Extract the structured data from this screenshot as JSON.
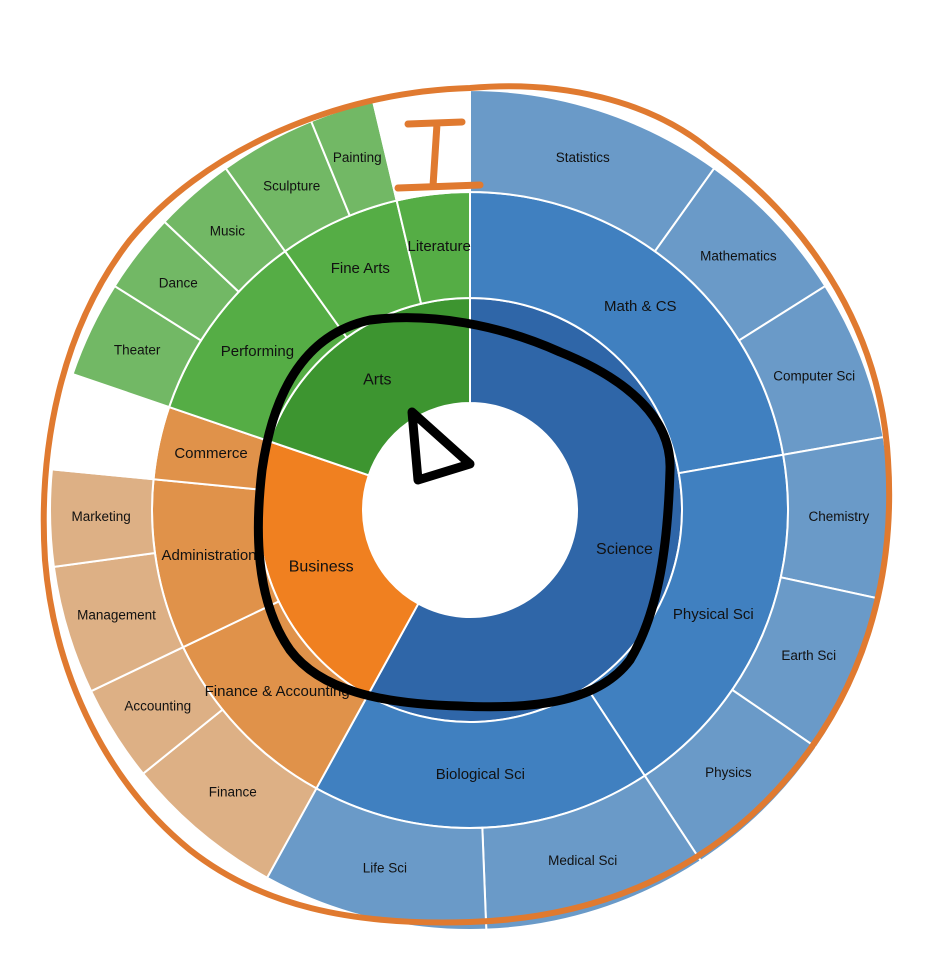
{
  "chart_data": {
    "type": "sunburst",
    "title": "",
    "root": {
      "children": [
        {
          "name": "Science",
          "color": "#2f66a8",
          "children": [
            {
              "name": "Math & CS",
              "color": "#4080c0",
              "children": [
                {
                  "name": "Statistics",
                  "value": 8,
                  "color": "#6a9ac8"
                },
                {
                  "name": "Mathematics",
                  "value": 5,
                  "color": "#6a9ac8"
                },
                {
                  "name": "Computer Sci",
                  "value": 5,
                  "color": "#6a9ac8"
                }
              ]
            },
            {
              "name": "Physical Sci",
              "color": "#4080c0",
              "children": [
                {
                  "name": "Chemistry",
                  "value": 5,
                  "color": "#6a9ac8"
                },
                {
                  "name": "Earth Sci",
                  "value": 5,
                  "color": "#6a9ac8"
                },
                {
                  "name": "Physics",
                  "value": 5,
                  "color": "#6a9ac8"
                }
              ]
            },
            {
              "name": "Biological Sci",
              "color": "#4080c0",
              "children": [
                {
                  "name": "Medical Sci",
                  "value": 7,
                  "color": "#6a9ac8"
                },
                {
                  "name": "Life Sci",
                  "value": 7,
                  "color": "#6a9ac8"
                }
              ]
            }
          ]
        },
        {
          "name": "Business",
          "color": "#f08020",
          "children": [
            {
              "name": "Finance & Accounting",
              "color": "#e0924a",
              "children": [
                {
                  "name": "Finance",
                  "value": 5,
                  "color": "#ddb085"
                },
                {
                  "name": "Accounting",
                  "value": 3,
                  "color": "#ddb085"
                }
              ]
            },
            {
              "name": "Administration",
              "color": "#e0924a",
              "children": [
                {
                  "name": "Management",
                  "value": 4,
                  "color": "#ddb085"
                },
                {
                  "name": "Marketing",
                  "value": 3,
                  "color": "#ddb085"
                }
              ]
            },
            {
              "name": "Commerce",
              "color": "#e0924a",
              "children": [
                {
                  "name": "",
                  "value": 3,
                  "color": "#ffffff"
                }
              ]
            }
          ]
        },
        {
          "name": "Arts",
          "color": "#3d9530",
          "children": [
            {
              "name": "Performing",
              "color": "#55ad45",
              "children": [
                {
                  "name": "Theater",
                  "value": 3,
                  "color": "#72b865"
                },
                {
                  "name": "Dance",
                  "value": 2.5,
                  "color": "#72b865"
                },
                {
                  "name": "Music",
                  "value": 2.5,
                  "color": "#72b865"
                }
              ]
            },
            {
              "name": "Fine Arts",
              "color": "#55ad45",
              "children": [
                {
                  "name": "Sculpture",
                  "value": 3,
                  "color": "#72b865"
                },
                {
                  "name": "Painting",
                  "value": 2,
                  "color": "#72b865"
                }
              ]
            },
            {
              "name": "Literature",
              "color": "#55ad45",
              "children": [
                {
                  "name": "",
                  "value": 3,
                  "color": "#ffffff"
                }
              ]
            }
          ]
        }
      ]
    },
    "annotations": {
      "color_circle": "#000000",
      "color_outline": "#e07a30",
      "shapes": [
        "triangle",
        "I-beam",
        "hand-drawn circle around inner ring",
        "hand-drawn outline around chart"
      ]
    }
  }
}
